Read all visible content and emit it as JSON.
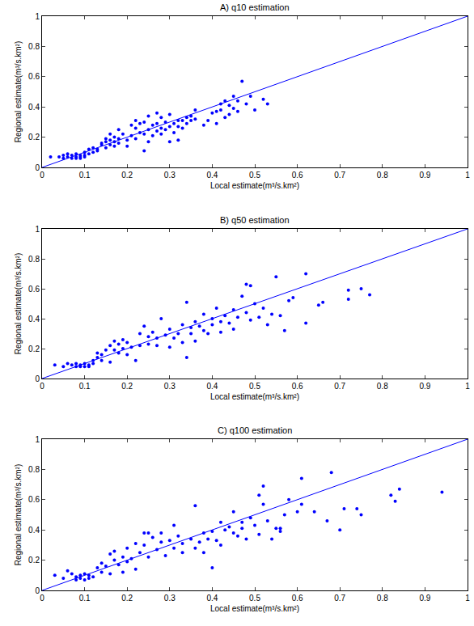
{
  "chart_data": [
    {
      "type": "scatter",
      "title": "A) q10 estimation",
      "x_label": "Local estimate(m³/s.km²)",
      "y_label": "Regional estimate(m³/s.km²)",
      "xlim": [
        0,
        1
      ],
      "ylim": [
        0,
        1
      ],
      "xticks": [
        0,
        0.1,
        0.2,
        0.3,
        0.4,
        0.5,
        0.6,
        0.7,
        0.8,
        0.9,
        1
      ],
      "yticks": [
        0,
        0.2,
        0.4,
        0.6,
        0.8,
        1
      ],
      "grid": false,
      "series": [
        {
          "type": "scatter",
          "color": "#0000ff",
          "marker": "circle",
          "x": [
            0.02,
            0.04,
            0.05,
            0.05,
            0.06,
            0.06,
            0.07,
            0.07,
            0.08,
            0.08,
            0.08,
            0.09,
            0.09,
            0.09,
            0.1,
            0.1,
            0.1,
            0.11,
            0.11,
            0.12,
            0.12,
            0.13,
            0.13,
            0.14,
            0.14,
            0.15,
            0.15,
            0.15,
            0.16,
            0.16,
            0.16,
            0.17,
            0.17,
            0.17,
            0.18,
            0.18,
            0.18,
            0.19,
            0.2,
            0.2,
            0.21,
            0.21,
            0.22,
            0.22,
            0.22,
            0.23,
            0.23,
            0.24,
            0.24,
            0.24,
            0.25,
            0.25,
            0.25,
            0.26,
            0.26,
            0.27,
            0.27,
            0.27,
            0.28,
            0.28,
            0.28,
            0.29,
            0.29,
            0.3,
            0.3,
            0.3,
            0.31,
            0.31,
            0.32,
            0.32,
            0.32,
            0.33,
            0.33,
            0.34,
            0.34,
            0.35,
            0.35,
            0.36,
            0.36,
            0.38,
            0.39,
            0.4,
            0.41,
            0.41,
            0.42,
            0.42,
            0.43,
            0.43,
            0.44,
            0.44,
            0.45,
            0.45,
            0.46,
            0.46,
            0.47,
            0.48,
            0.49,
            0.5,
            0.52,
            0.53
          ],
          "values": [
            0.07,
            0.07,
            0.08,
            0.06,
            0.07,
            0.09,
            0.06,
            0.08,
            0.07,
            0.06,
            0.09,
            0.07,
            0.08,
            0.06,
            0.07,
            0.08,
            0.1,
            0.09,
            0.12,
            0.1,
            0.13,
            0.11,
            0.12,
            0.15,
            0.16,
            0.13,
            0.17,
            0.19,
            0.15,
            0.18,
            0.22,
            0.14,
            0.17,
            0.2,
            0.19,
            0.16,
            0.25,
            0.22,
            0.14,
            0.18,
            0.21,
            0.28,
            0.19,
            0.26,
            0.31,
            0.23,
            0.29,
            0.11,
            0.22,
            0.3,
            0.17,
            0.25,
            0.34,
            0.21,
            0.28,
            0.24,
            0.29,
            0.36,
            0.22,
            0.26,
            0.33,
            0.25,
            0.3,
            0.17,
            0.27,
            0.35,
            0.29,
            0.23,
            0.31,
            0.27,
            0.18,
            0.31,
            0.26,
            0.29,
            0.33,
            0.31,
            0.34,
            0.32,
            0.38,
            0.28,
            0.31,
            0.36,
            0.29,
            0.37,
            0.38,
            0.42,
            0.33,
            0.44,
            0.35,
            0.41,
            0.47,
            0.39,
            0.44,
            0.37,
            0.57,
            0.42,
            0.47,
            0.38,
            0.45,
            0.42
          ]
        },
        {
          "type": "line",
          "color": "#0000ff",
          "line_style": "solid",
          "x": [
            0,
            1
          ],
          "values": [
            0,
            1
          ]
        }
      ]
    },
    {
      "type": "scatter",
      "title": "B) q50 estimation",
      "x_label": "Local estimate(m³/s.km²)",
      "y_label": "Regional estimate(m³/s.km²)",
      "xlim": [
        0,
        1
      ],
      "ylim": [
        0,
        1
      ],
      "xticks": [
        0,
        0.1,
        0.2,
        0.3,
        0.4,
        0.5,
        0.6,
        0.7,
        0.8,
        0.9,
        1
      ],
      "yticks": [
        0,
        0.2,
        0.4,
        0.6,
        0.8,
        1
      ],
      "grid": false,
      "series": [
        {
          "type": "scatter",
          "color": "#0000ff",
          "marker": "circle",
          "x": [
            0.03,
            0.05,
            0.06,
            0.07,
            0.08,
            0.08,
            0.09,
            0.09,
            0.1,
            0.1,
            0.11,
            0.11,
            0.12,
            0.12,
            0.13,
            0.13,
            0.14,
            0.14,
            0.15,
            0.16,
            0.16,
            0.17,
            0.17,
            0.18,
            0.18,
            0.19,
            0.19,
            0.2,
            0.2,
            0.21,
            0.22,
            0.23,
            0.23,
            0.24,
            0.25,
            0.25,
            0.26,
            0.27,
            0.27,
            0.28,
            0.29,
            0.3,
            0.3,
            0.31,
            0.32,
            0.33,
            0.33,
            0.34,
            0.34,
            0.35,
            0.35,
            0.36,
            0.36,
            0.37,
            0.38,
            0.38,
            0.39,
            0.4,
            0.4,
            0.41,
            0.42,
            0.42,
            0.43,
            0.44,
            0.45,
            0.45,
            0.46,
            0.47,
            0.48,
            0.48,
            0.49,
            0.49,
            0.5,
            0.51,
            0.52,
            0.53,
            0.54,
            0.55,
            0.56,
            0.57,
            0.58,
            0.59,
            0.62,
            0.62,
            0.65,
            0.66,
            0.72,
            0.72,
            0.75,
            0.77
          ],
          "values": [
            0.09,
            0.08,
            0.1,
            0.09,
            0.08,
            0.1,
            0.08,
            0.09,
            0.08,
            0.1,
            0.09,
            0.08,
            0.1,
            0.12,
            0.14,
            0.17,
            0.12,
            0.16,
            0.19,
            0.11,
            0.22,
            0.19,
            0.25,
            0.17,
            0.23,
            0.2,
            0.26,
            0.16,
            0.24,
            0.21,
            0.12,
            0.3,
            0.22,
            0.35,
            0.23,
            0.28,
            0.31,
            0.27,
            0.22,
            0.4,
            0.29,
            0.21,
            0.33,
            0.27,
            0.3,
            0.24,
            0.36,
            0.51,
            0.14,
            0.34,
            0.3,
            0.38,
            0.25,
            0.35,
            0.43,
            0.32,
            0.3,
            0.4,
            0.36,
            0.47,
            0.38,
            0.31,
            0.42,
            0.37,
            0.46,
            0.33,
            0.41,
            0.55,
            0.44,
            0.63,
            0.39,
            0.62,
            0.5,
            0.41,
            0.47,
            0.36,
            0.43,
            0.68,
            0.42,
            0.32,
            0.52,
            0.54,
            0.37,
            0.7,
            0.49,
            0.51,
            0.59,
            0.53,
            0.6,
            0.56
          ]
        },
        {
          "type": "line",
          "color": "#0000ff",
          "line_style": "solid",
          "x": [
            0,
            1
          ],
          "values": [
            0,
            1
          ]
        }
      ]
    },
    {
      "type": "scatter",
      "title": "C) q100 estimation",
      "x_label": "Local estimate(m³/s.km²)",
      "y_label": "Regional estimate(m³/s.km²)",
      "xlim": [
        0,
        1
      ],
      "ylim": [
        0,
        1
      ],
      "xticks": [
        0,
        0.1,
        0.2,
        0.3,
        0.4,
        0.5,
        0.6,
        0.7,
        0.8,
        0.9,
        1
      ],
      "yticks": [
        0,
        0.2,
        0.4,
        0.6,
        0.8,
        1
      ],
      "grid": false,
      "series": [
        {
          "type": "scatter",
          "color": "#0000ff",
          "marker": "circle",
          "x": [
            0.03,
            0.05,
            0.06,
            0.07,
            0.08,
            0.08,
            0.09,
            0.09,
            0.1,
            0.1,
            0.11,
            0.11,
            0.12,
            0.13,
            0.14,
            0.14,
            0.15,
            0.16,
            0.16,
            0.17,
            0.17,
            0.18,
            0.19,
            0.19,
            0.2,
            0.2,
            0.21,
            0.22,
            0.22,
            0.23,
            0.24,
            0.24,
            0.25,
            0.25,
            0.26,
            0.27,
            0.28,
            0.28,
            0.29,
            0.3,
            0.31,
            0.31,
            0.32,
            0.33,
            0.33,
            0.35,
            0.36,
            0.36,
            0.37,
            0.38,
            0.38,
            0.39,
            0.4,
            0.4,
            0.41,
            0.42,
            0.42,
            0.43,
            0.44,
            0.45,
            0.45,
            0.46,
            0.47,
            0.47,
            0.48,
            0.49,
            0.5,
            0.51,
            0.51,
            0.52,
            0.52,
            0.53,
            0.54,
            0.55,
            0.56,
            0.56,
            0.57,
            0.58,
            0.6,
            0.61,
            0.61,
            0.64,
            0.67,
            0.68,
            0.7,
            0.71,
            0.74,
            0.75,
            0.82,
            0.83,
            0.84,
            0.94
          ],
          "values": [
            0.1,
            0.08,
            0.13,
            0.11,
            0.09,
            0.07,
            0.1,
            0.08,
            0.11,
            0.07,
            0.1,
            0.08,
            0.09,
            0.15,
            0.18,
            0.12,
            0.16,
            0.24,
            0.11,
            0.2,
            0.26,
            0.17,
            0.22,
            0.12,
            0.19,
            0.28,
            0.21,
            0.14,
            0.31,
            0.25,
            0.38,
            0.3,
            0.22,
            0.38,
            0.35,
            0.27,
            0.32,
            0.38,
            0.23,
            0.33,
            0.28,
            0.43,
            0.36,
            0.25,
            0.31,
            0.34,
            0.56,
            0.28,
            0.32,
            0.38,
            0.25,
            0.34,
            0.39,
            0.15,
            0.33,
            0.45,
            0.3,
            0.4,
            0.42,
            0.38,
            0.52,
            0.36,
            0.45,
            0.41,
            0.34,
            0.48,
            0.43,
            0.37,
            0.63,
            0.69,
            0.57,
            0.46,
            0.34,
            0.41,
            0.41,
            0.39,
            0.5,
            0.6,
            0.52,
            0.74,
            0.57,
            0.52,
            0.46,
            0.78,
            0.4,
            0.54,
            0.54,
            0.5,
            0.63,
            0.59,
            0.67,
            0.65
          ]
        },
        {
          "type": "line",
          "color": "#0000ff",
          "line_style": "solid",
          "x": [
            0,
            1
          ],
          "values": [
            0,
            1
          ]
        }
      ]
    }
  ]
}
